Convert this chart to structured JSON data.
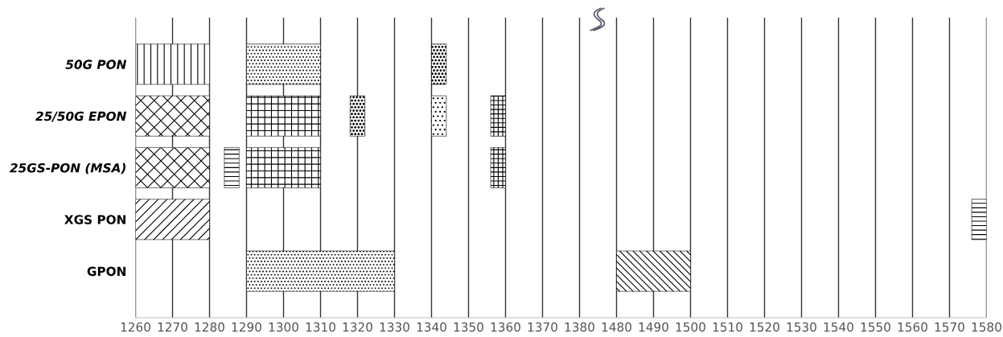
{
  "chart_data": [
    {
      "type": "bar",
      "orientation": "horizontal",
      "categories": [
        "50G PON",
        "25/50G EPON",
        "25GS-PON (MSA)",
        "XGS PON",
        "GPON"
      ],
      "xlim": [
        1260,
        1385
      ],
      "xticks": [
        1260,
        1270,
        1280,
        1290,
        1300,
        1310,
        1320,
        1330,
        1340,
        1350,
        1360,
        1370,
        1380
      ],
      "grid": "x",
      "series": [
        {
          "color": "#000000",
          "base": [
            1260,
            1260,
            1260,
            1260,
            null
          ],
          "values": [
            20,
            20,
            20,
            20,
            null
          ]
        },
        {
          "color": "#000000",
          "base": [
            1290,
            1290,
            1290,
            null,
            1290
          ],
          "values": [
            20,
            20,
            20,
            null,
            40
          ]
        },
        {
          "color": "#000000",
          "base": [
            null,
            1318,
            1284,
            null,
            null
          ],
          "values": [
            null,
            4,
            4,
            null,
            null
          ]
        },
        {
          "color": "#000000",
          "base": [
            1340,
            1340,
            null,
            null,
            null
          ],
          "values": [
            4,
            4,
            null,
            null,
            null
          ]
        },
        {
          "color": "#000000",
          "base": [
            null,
            1356,
            1356,
            null,
            null
          ],
          "values": [
            null,
            4,
            4,
            null,
            null
          ]
        }
      ]
    },
    {
      "type": "bar",
      "orientation": "horizontal",
      "categories": [
        null,
        null,
        null,
        null,
        null
      ],
      "xlim": [
        1475,
        1580
      ],
      "xticks": [
        1480,
        1490,
        1500,
        1510,
        1520,
        1530,
        1540,
        1550,
        1560,
        1570,
        1580
      ],
      "grid": "x",
      "tick_labels": "x",
      "series": [
        {
          "color": "#000000",
          "base": [
            null,
            null,
            null,
            1576,
            1480
          ],
          "values": [
            null,
            null,
            null,
            4,
            20
          ]
        }
      ]
    }
  ]
}
